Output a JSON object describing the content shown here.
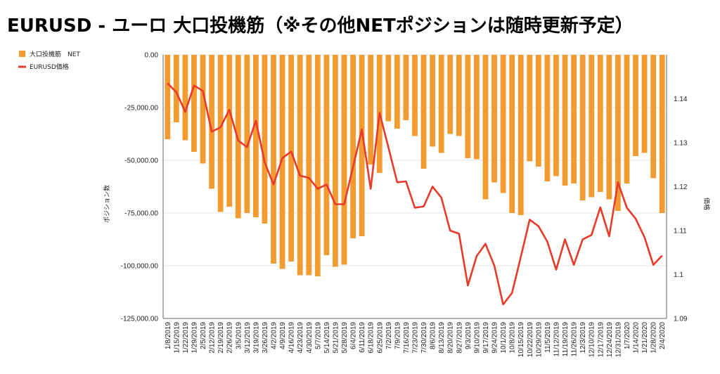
{
  "title": "EURUSD - ユーロ 大口投機筋（※その他NETポジションは随時更新予定）",
  "colors": {
    "bar": "#f29b30",
    "line": "#e8392a",
    "axis": "#666666"
  },
  "chart_data": {
    "type": "bar+line",
    "title": "EURUSD - ユーロ 大口投機筋（※その他NETポジションは随時更新予定）",
    "ylabel_left": "ポジション数",
    "ylabel_right": "価格",
    "ylim_left": [
      -125000,
      0
    ],
    "ylim_right": [
      1.09,
      1.15
    ],
    "yticks_left": [
      0,
      -25000,
      -50000,
      -75000,
      -100000,
      -125000
    ],
    "yticks_left_labels": [
      "0.00",
      "-25,000.00",
      "-50,000.00",
      "-75,000.00",
      "-100,000.00",
      "-125,000.00"
    ],
    "yticks_right": [
      1.09,
      1.1,
      1.11,
      1.12,
      1.13,
      1.14
    ],
    "yticks_right_labels": [
      "1.09",
      "1.1",
      "1.11",
      "1.12",
      "1.13",
      "1.14"
    ],
    "legend": [
      {
        "label": "大口投機筋　NET",
        "type": "bar"
      },
      {
        "label": "EURUSD価格",
        "type": "line"
      }
    ],
    "x_labels": [
      "1/8/2019",
      "1/15/2019",
      "1/22/2019",
      "1/29/2019",
      "2/5/2019",
      "2/12/2019",
      "2/19/2019",
      "2/26/2019",
      "3/5/2019",
      "3/12/2019",
      "3/19/2019",
      "3/26/2019",
      "4/2/2019",
      "4/9/2019",
      "4/16/2019",
      "4/23/2019",
      "4/30/2019",
      "5/7/2019",
      "5/14/2019",
      "5/21/2019",
      "5/28/2019",
      "6/4/2019",
      "6/11/2019",
      "6/18/2019",
      "6/25/2019",
      "7/2/2019",
      "7/9/2019",
      "7/16/2019",
      "7/23/2019",
      "7/30/2019",
      "8/6/2019",
      "8/13/2019",
      "8/20/2019",
      "8/27/2019",
      "9/3/2019",
      "9/10/2019",
      "9/17/2019",
      "9/24/2019",
      "10/1/2019",
      "10/8/2019",
      "10/15/2019",
      "10/22/2019",
      "10/29/2019",
      "11/5/2019",
      "11/12/2019",
      "11/19/2019",
      "11/26/2019",
      "12/3/2019",
      "12/10/2019",
      "12/17/2019",
      "12/24/2019",
      "12/31/2019",
      "1/7/2020",
      "1/14/2020",
      "1/21/2020",
      "1/28/2020",
      "2/4/2020"
    ],
    "bar_values": [
      -40000,
      -32000,
      -40500,
      -46000,
      -51500,
      -63500,
      -74500,
      -72000,
      -77500,
      -75000,
      -77000,
      -80000,
      -99000,
      -101500,
      -98000,
      -104500,
      -104500,
      -105000,
      -95000,
      -100500,
      -99500,
      -87000,
      -86000,
      -52000,
      -56000,
      -31500,
      -35000,
      -31000,
      -38500,
      -54000,
      -43500,
      -46500,
      -37500,
      -38500,
      -49000,
      -49500,
      -68500,
      -60500,
      -65500,
      -75000,
      -76000,
      -50500,
      -53000,
      -60000,
      -57500,
      -62000,
      -61000,
      -69000,
      -67500,
      -65000,
      -68500,
      -74000,
      -61000,
      -48000,
      -46500,
      -58500,
      -75000
    ],
    "line_values": [
      1.1435,
      1.1415,
      1.137,
      1.143,
      1.1418,
      1.1325,
      1.1335,
      1.1375,
      1.1305,
      1.129,
      1.135,
      1.1255,
      1.1205,
      1.1265,
      1.128,
      1.1225,
      1.122,
      1.1195,
      1.1205,
      1.116,
      1.116,
      1.1245,
      1.133,
      1.1195,
      1.1368,
      1.129,
      1.121,
      1.1212,
      1.1152,
      1.1155,
      1.12,
      1.1175,
      1.11,
      1.1093,
      1.0975,
      1.1042,
      1.107,
      1.102,
      1.0932,
      1.0958,
      1.104,
      1.1125,
      1.111,
      1.1075,
      1.1011,
      1.108,
      1.1022,
      1.108,
      1.109,
      1.1153,
      1.1087,
      1.121,
      1.1152,
      1.1127,
      1.1085,
      1.1022,
      1.1043
    ]
  }
}
